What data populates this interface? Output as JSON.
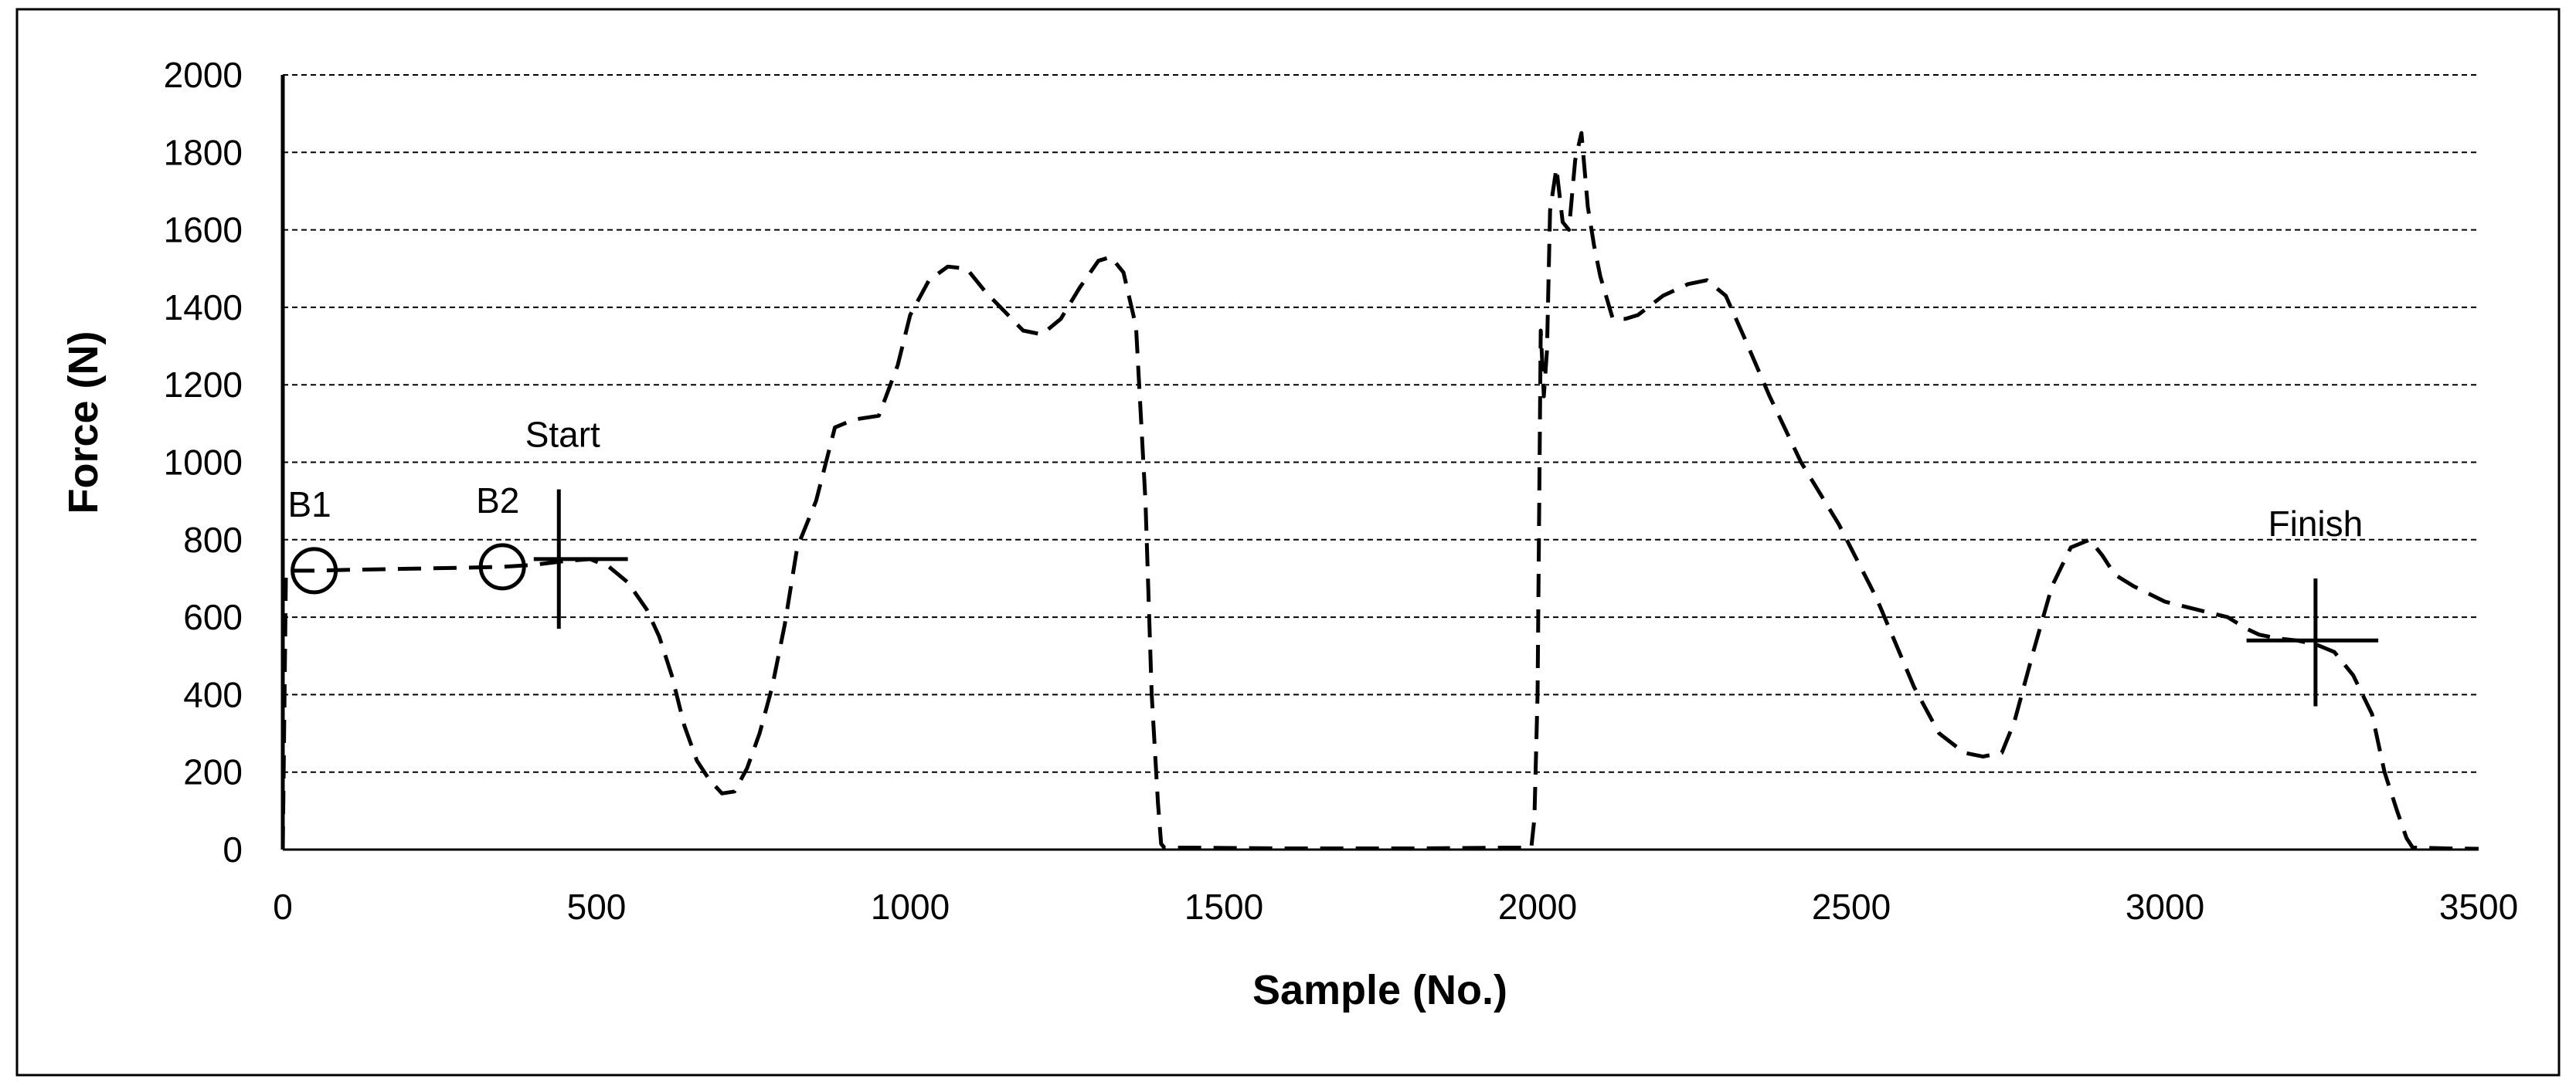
{
  "chart_data": {
    "type": "line",
    "title": "",
    "xlabel": "Sample (No.)",
    "ylabel": "Force (N)",
    "xlim": [
      0,
      3500
    ],
    "ylim": [
      0,
      2000
    ],
    "xticks": [
      0,
      500,
      1000,
      1500,
      2000,
      2500,
      3000,
      3500
    ],
    "yticks": [
      0,
      200,
      400,
      600,
      800,
      1000,
      1200,
      1400,
      1600,
      1800,
      2000
    ],
    "grid": "horizontal-dashed",
    "series": [
      {
        "line_style": "dashed",
        "color": "#000000",
        "x": [
          0,
          5,
          20,
          50,
          100,
          200,
          300,
          350,
          400,
          450,
          490,
          520,
          550,
          580,
          600,
          620,
          640,
          660,
          680,
          700,
          720,
          740,
          760,
          780,
          800,
          820,
          850,
          880,
          910,
          950,
          980,
          1000,
          1030,
          1060,
          1090,
          1120,
          1150,
          1180,
          1210,
          1240,
          1270,
          1300,
          1320,
          1340,
          1360,
          1375,
          1385,
          1395,
          1400,
          1405,
          1410,
          1450,
          1600,
          1800,
          1950,
          1990,
          1995,
          2000,
          2005,
          2010,
          2015,
          2020,
          2030,
          2040,
          2050,
          2060,
          2070,
          2080,
          2090,
          2100,
          2120,
          2140,
          2160,
          2200,
          2240,
          2270,
          2300,
          2330,
          2370,
          2420,
          2480,
          2540,
          2600,
          2640,
          2680,
          2710,
          2740,
          2760,
          2790,
          2820,
          2850,
          2880,
          2900,
          2920,
          2950,
          3000,
          3050,
          3100,
          3130,
          3150,
          3180,
          3210,
          3240,
          3270,
          3300,
          3330,
          3350,
          3370,
          3385,
          3395,
          3400,
          3450,
          3500
        ],
        "y": [
          0,
          720,
          720,
          720,
          722,
          725,
          728,
          730,
          735,
          745,
          750,
          730,
          690,
          620,
          550,
          450,
          320,
          230,
          180,
          145,
          150,
          210,
          300,
          420,
          580,
          780,
          900,
          1090,
          1110,
          1120,
          1250,
          1380,
          1470,
          1505,
          1500,
          1440,
          1390,
          1340,
          1330,
          1370,
          1450,
          1520,
          1530,
          1490,
          1350,
          900,
          400,
          120,
          15,
          5,
          5,
          5,
          3,
          3,
          5,
          5,
          80,
          400,
          1340,
          1170,
          1290,
          1650,
          1760,
          1620,
          1600,
          1780,
          1850,
          1660,
          1560,
          1480,
          1370,
          1370,
          1380,
          1430,
          1460,
          1470,
          1430,
          1320,
          1170,
          1000,
          840,
          650,
          420,
          300,
          250,
          240,
          250,
          330,
          510,
          680,
          780,
          800,
          760,
          710,
          680,
          640,
          620,
          600,
          570,
          555,
          545,
          540,
          530,
          510,
          450,
          350,
          200,
          100,
          30,
          5,
          5,
          3,
          2
        ]
      }
    ],
    "annotations": [
      {
        "label": "B1",
        "marker": "circle",
        "x": 50,
        "y": 720
      },
      {
        "label": "B2",
        "marker": "circle",
        "x": 350,
        "y": 730
      },
      {
        "label": "Start",
        "marker": "cross",
        "x": 440,
        "y": 750,
        "x_from": 400,
        "x_to": 550,
        "y_from": 570,
        "y_to": 930
      },
      {
        "label": "Finish",
        "marker": "cross",
        "x": 3240,
        "y": 540,
        "x_from": 3130,
        "x_to": 3340,
        "y_from": 370,
        "y_to": 700
      }
    ]
  }
}
